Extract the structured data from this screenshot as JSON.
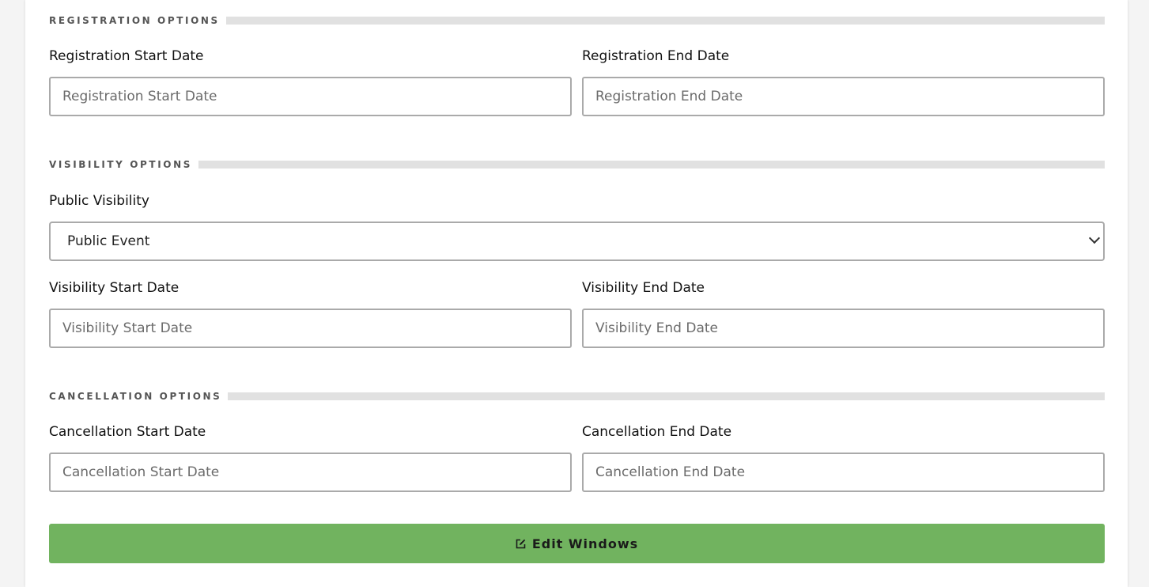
{
  "sections": {
    "registration": {
      "title": "REGISTRATION OPTIONS",
      "start_label": "Registration Start Date",
      "start_placeholder": "Registration Start Date",
      "end_label": "Registration End Date",
      "end_placeholder": "Registration End Date"
    },
    "visibility": {
      "title": "VISIBILITY OPTIONS",
      "public_label": "Public Visibility",
      "public_value": "Public Event",
      "start_label": "Visibility Start Date",
      "start_placeholder": "Visibility Start Date",
      "end_label": "Visibility End Date",
      "end_placeholder": "Visibility End Date"
    },
    "cancellation": {
      "title": "CANCELLATION OPTIONS",
      "start_label": "Cancellation Start Date",
      "start_placeholder": "Cancellation Start Date",
      "end_label": "Cancellation End Date",
      "end_placeholder": "Cancellation End Date"
    }
  },
  "submit": {
    "label": "Edit Windows",
    "icon": "edit-icon",
    "color": "#71b35f"
  }
}
